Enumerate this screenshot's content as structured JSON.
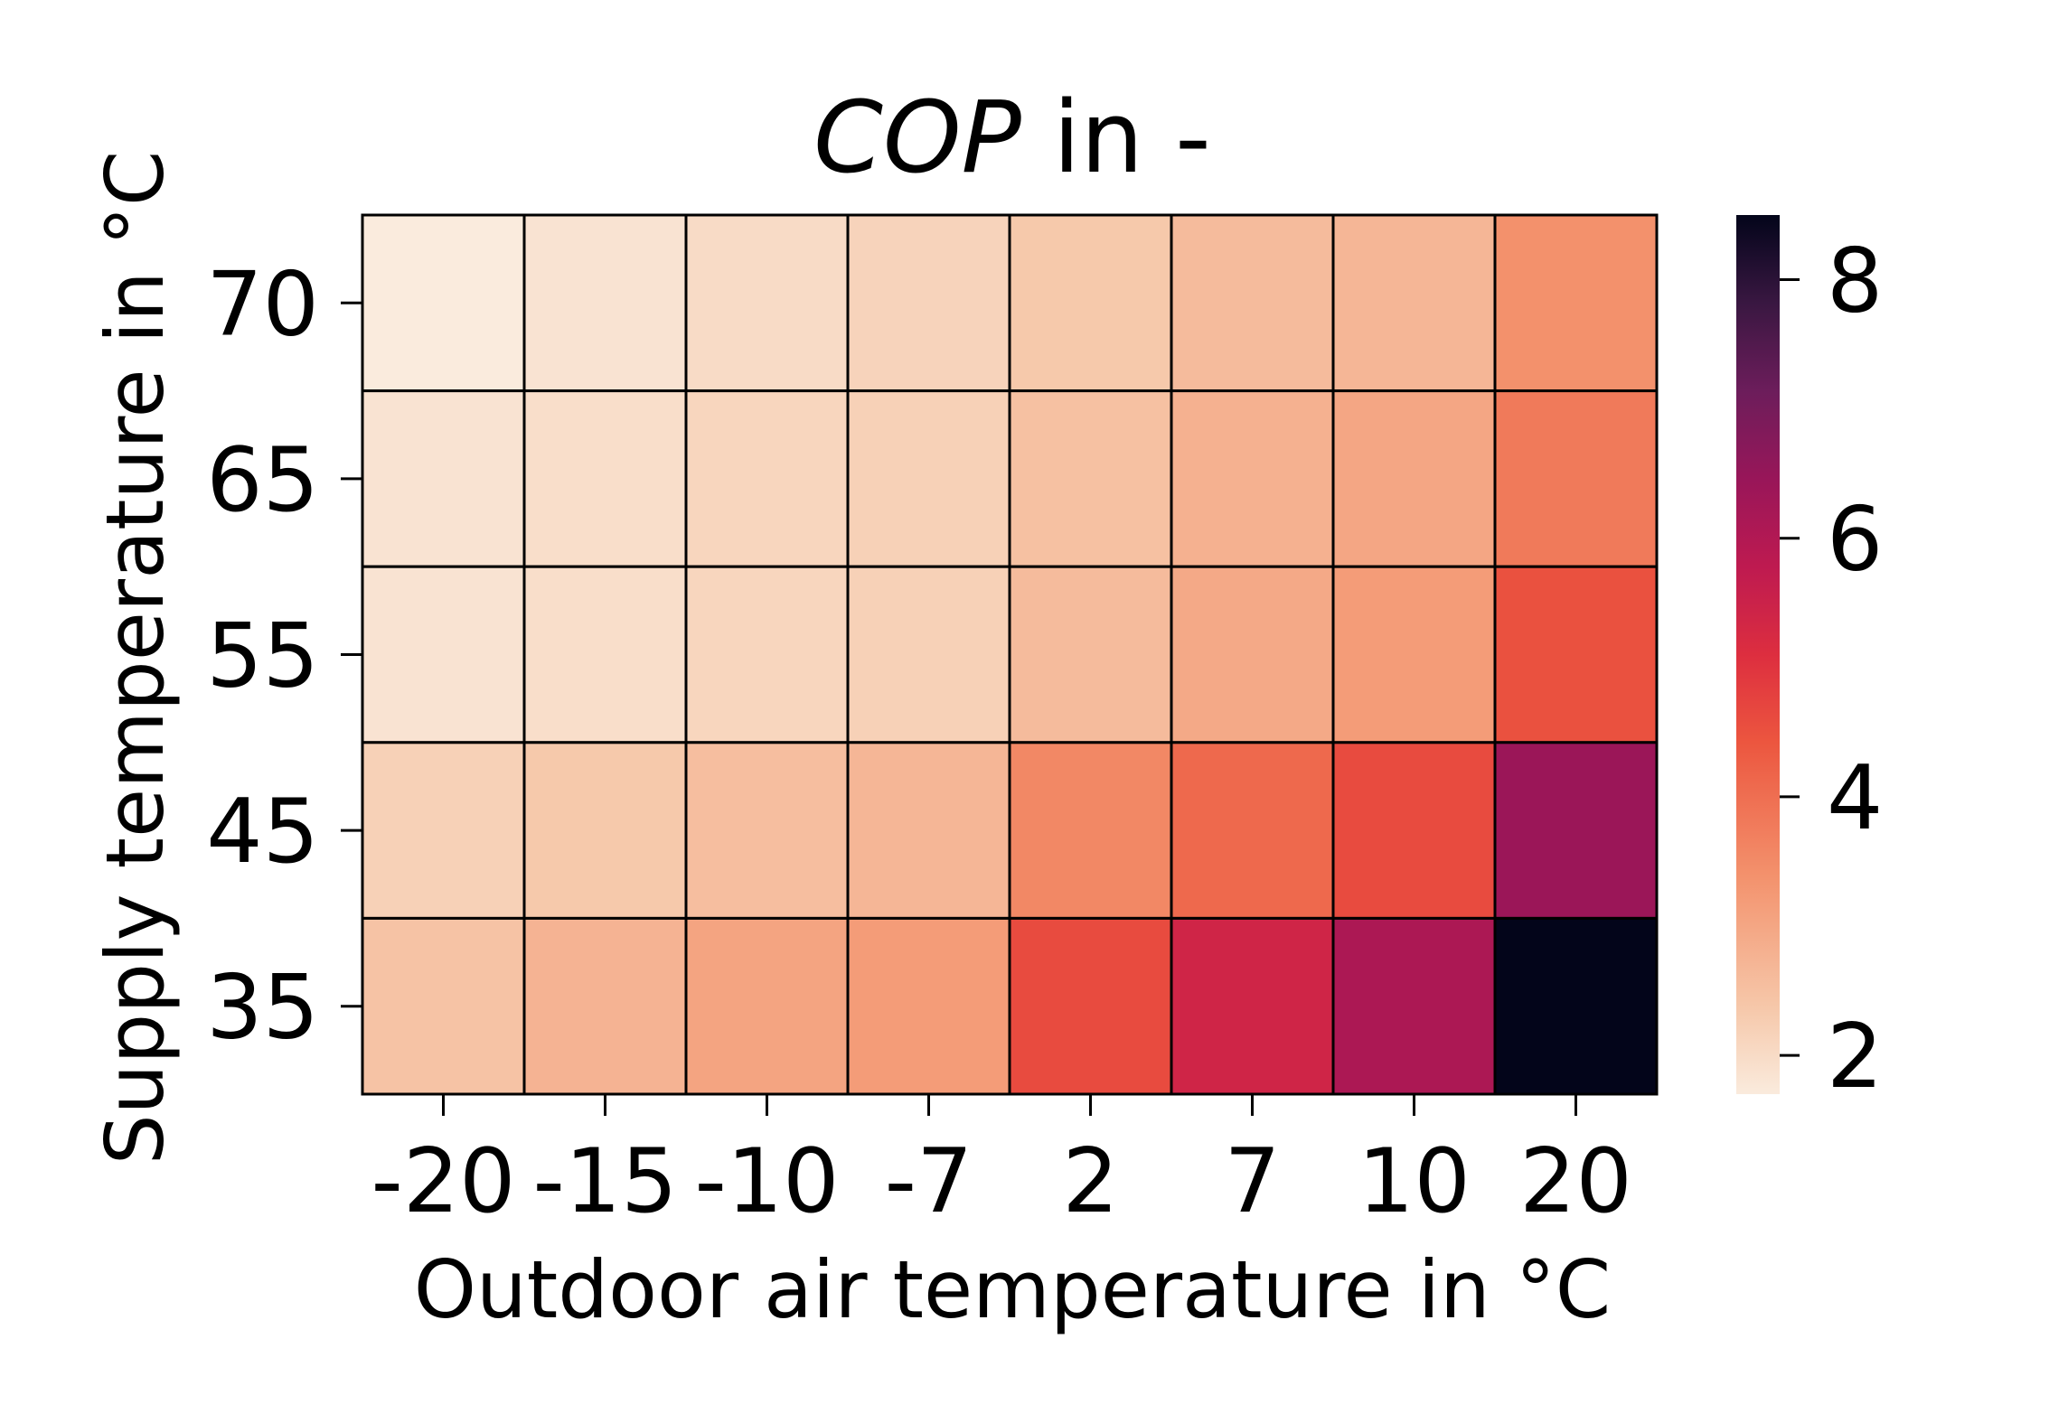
{
  "chart_data": {
    "type": "heatmap",
    "title": {
      "math": "COP",
      "rest": " in -"
    },
    "xlabel": "Outdoor air temperature in °C",
    "ylabel": "Supply temperature in °C",
    "x_categories": [
      "-20",
      "-15",
      "-10",
      "-7",
      "2",
      "7",
      "10",
      "20"
    ],
    "y_categories": [
      "70",
      "65",
      "55",
      "45",
      "35"
    ],
    "values": [
      [
        1.7,
        1.85,
        2.0,
        2.15,
        2.35,
        2.6,
        2.7,
        3.4
      ],
      [
        1.85,
        1.95,
        2.1,
        2.2,
        2.5,
        2.8,
        3.0,
        3.8
      ],
      [
        1.85,
        1.95,
        2.1,
        2.2,
        2.6,
        2.95,
        3.2,
        4.5
      ],
      [
        2.2,
        2.35,
        2.55,
        2.7,
        3.55,
        4.1,
        4.6,
        6.4
      ],
      [
        2.45,
        2.75,
        3.05,
        3.2,
        4.6,
        5.4,
        6.1,
        8.5
      ]
    ],
    "colorbar": {
      "ticks": [
        "2",
        "4",
        "6",
        "8"
      ],
      "vmin": 1.7,
      "vmax": 8.5,
      "colormap": "rocket_r"
    },
    "grid_color": "#000000"
  }
}
